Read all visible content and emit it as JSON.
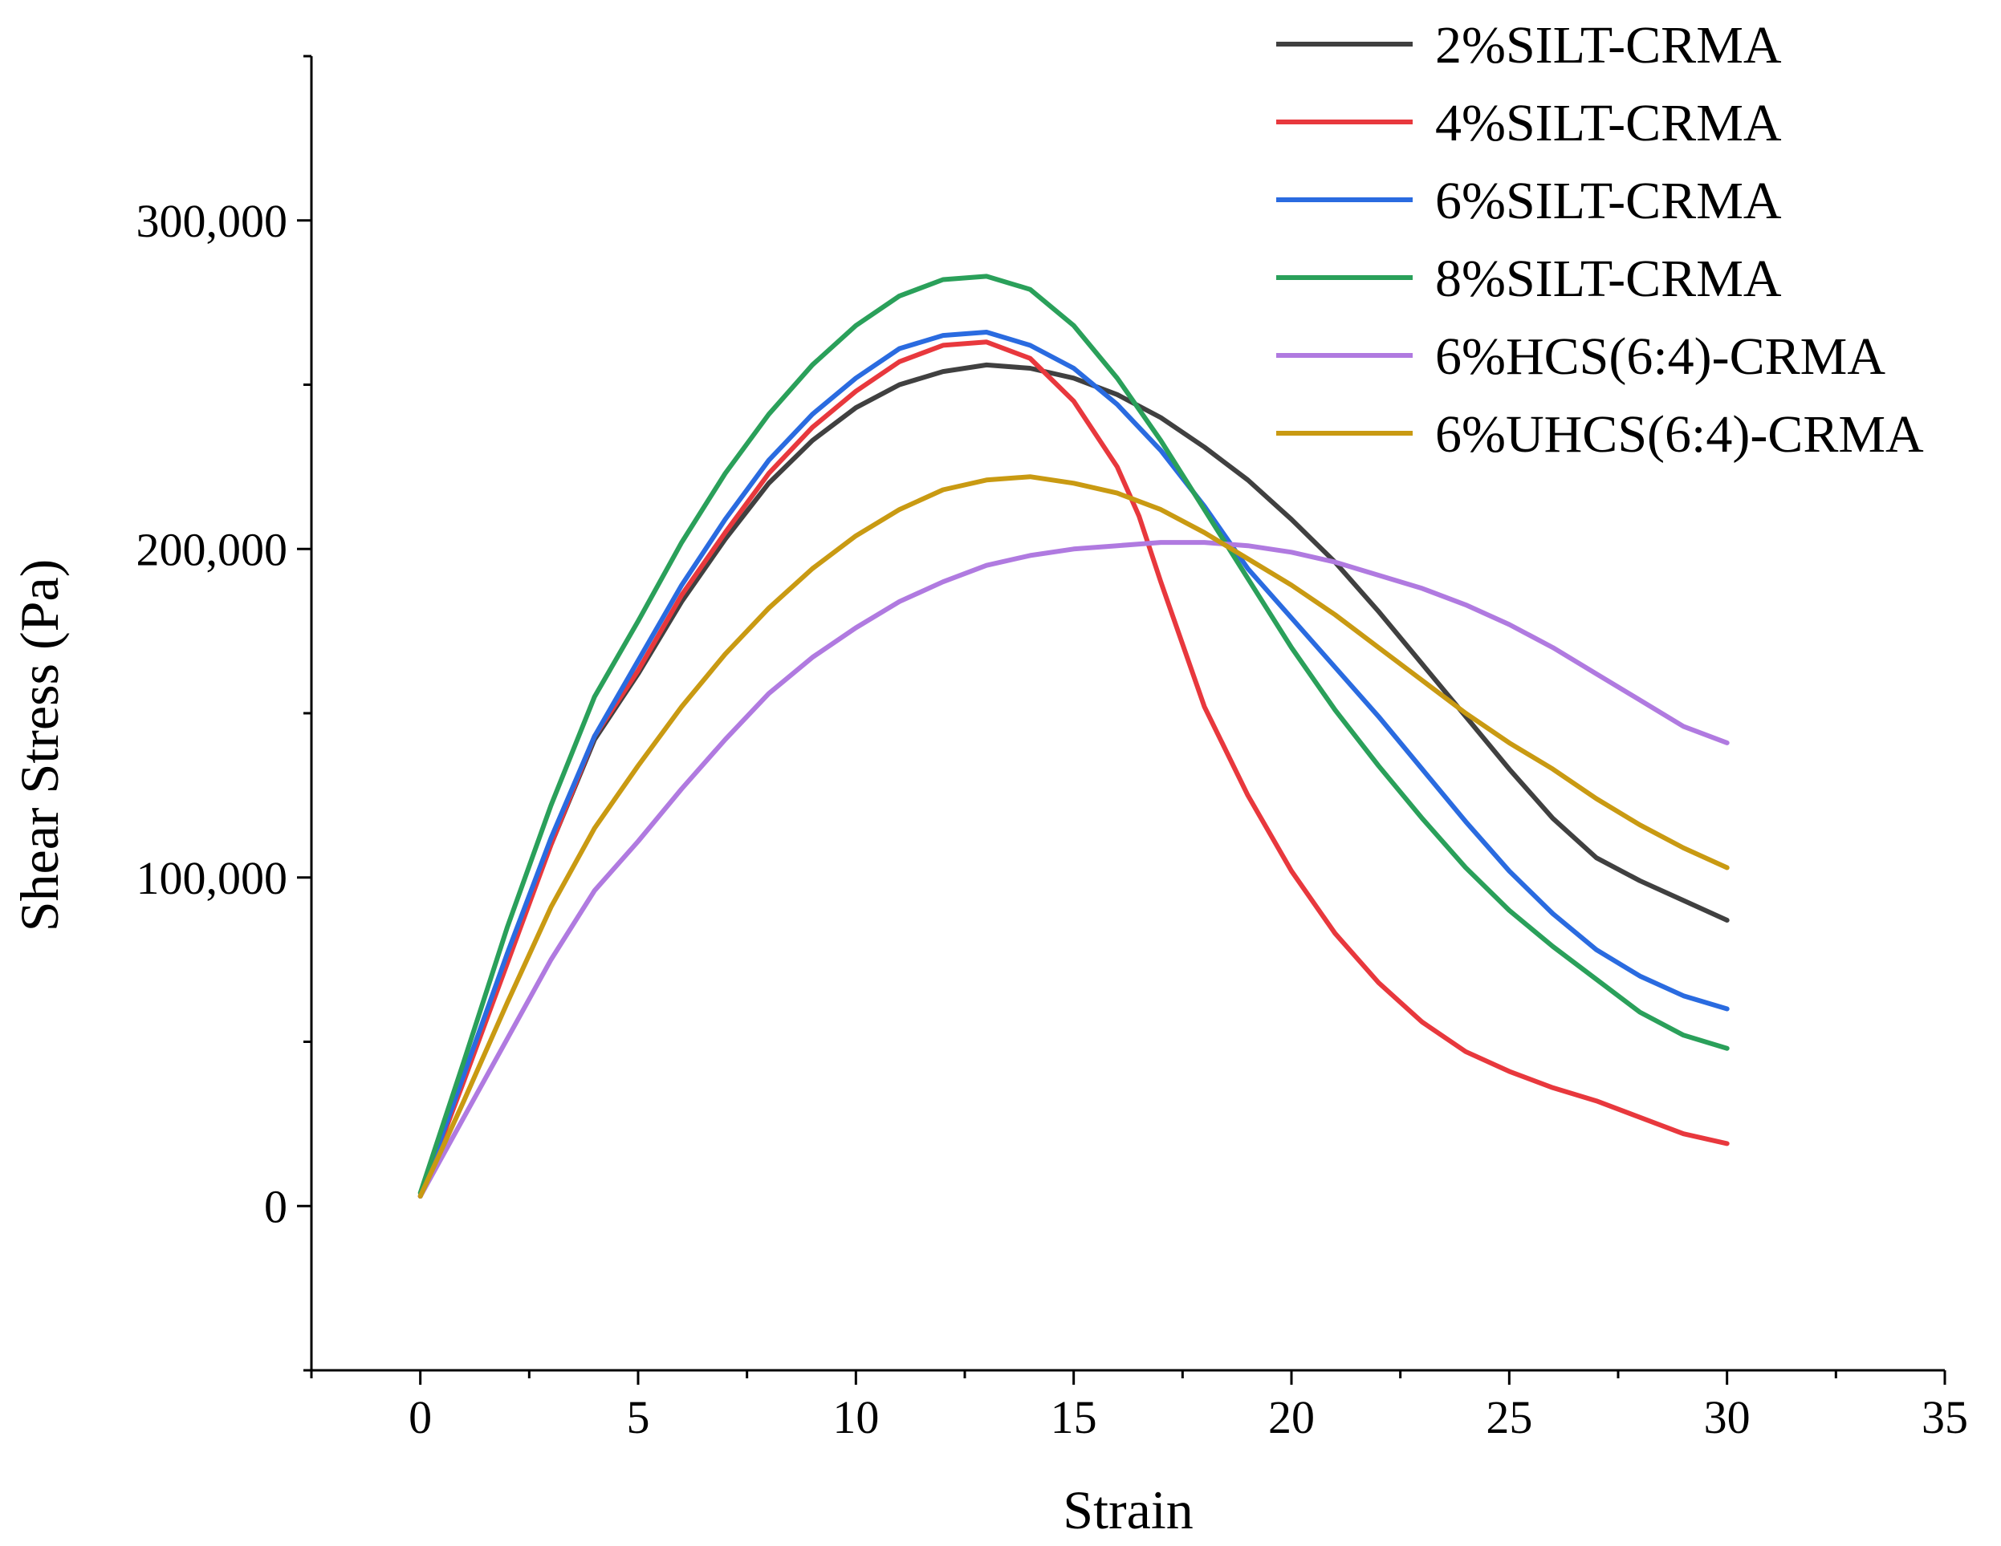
{
  "chart_data": {
    "type": "line",
    "xlabel": "Strain",
    "ylabel": "Shear Stress (Pa)",
    "xlim": [
      -2.5,
      35
    ],
    "ylim": [
      -50000,
      350000
    ],
    "xticks": [
      0,
      5,
      10,
      15,
      20,
      25,
      30,
      35
    ],
    "xtick_labels": [
      "0",
      "5",
      "10",
      "15",
      "20",
      "25",
      "30",
      "35"
    ],
    "yticks": [
      0,
      100000,
      200000,
      300000
    ],
    "ytick_labels": [
      "0",
      "100,000",
      "200,000",
      "300,000"
    ],
    "grid": false,
    "legend_position": "top-right",
    "series": [
      {
        "name": "2%SILT-CRMA",
        "color": "#404040",
        "x": [
          0,
          1,
          2,
          3,
          4,
          5,
          6,
          7,
          8,
          9,
          10,
          11,
          12,
          13,
          14,
          15,
          16,
          17,
          18,
          19,
          20,
          21,
          22,
          23,
          24,
          25,
          26,
          27,
          28,
          29,
          30
        ],
        "y": [
          3000,
          39000,
          75000,
          110000,
          142000,
          162000,
          184000,
          203000,
          220000,
          233000,
          243000,
          250000,
          254000,
          256000,
          255000,
          252000,
          247000,
          240000,
          231000,
          221000,
          209000,
          196000,
          181000,
          165000,
          149000,
          133000,
          118000,
          106000,
          99000,
          93000,
          87000
        ]
      },
      {
        "name": "4%SILT-CRMA",
        "color": "#e8383d",
        "x": [
          0,
          1,
          2,
          3,
          4,
          5,
          6,
          7,
          8,
          9,
          10,
          11,
          12,
          13,
          14,
          15,
          16,
          16.5,
          17,
          18,
          19,
          20,
          21,
          22,
          23,
          24,
          25,
          26,
          27,
          28,
          29,
          30
        ],
        "y": [
          3000,
          38000,
          74000,
          110000,
          143000,
          163000,
          186000,
          205000,
          223000,
          237000,
          248000,
          257000,
          262000,
          263000,
          258000,
          245000,
          225000,
          210000,
          190000,
          152000,
          125000,
          102000,
          83000,
          68000,
          56000,
          47000,
          41000,
          36000,
          32000,
          27000,
          22000,
          19000
        ]
      },
      {
        "name": "6%SILT-CRMA",
        "color": "#2a6be0",
        "x": [
          0,
          1,
          2,
          3,
          4,
          5,
          6,
          7,
          8,
          9,
          10,
          11,
          12,
          13,
          14,
          15,
          16,
          17,
          18,
          19,
          20,
          21,
          22,
          23,
          24,
          25,
          26,
          27,
          28,
          29,
          30
        ],
        "y": [
          3000,
          40000,
          77000,
          112000,
          143000,
          166000,
          189000,
          209000,
          227000,
          241000,
          252000,
          261000,
          265000,
          266000,
          262000,
          255000,
          244000,
          230000,
          213000,
          194000,
          179000,
          164000,
          149000,
          133000,
          117000,
          102000,
          89000,
          78000,
          70000,
          64000,
          60000
        ]
      },
      {
        "name": "8%SILT-CRMA",
        "color": "#2aa05a",
        "x": [
          0,
          1,
          2,
          3,
          4,
          5,
          6,
          7,
          8,
          9,
          10,
          11,
          12,
          13,
          14,
          15,
          16,
          17,
          18,
          19,
          20,
          21,
          22,
          23,
          24,
          25,
          26,
          27,
          28,
          29,
          30
        ],
        "y": [
          4000,
          44000,
          85000,
          122000,
          155000,
          178000,
          202000,
          223000,
          241000,
          256000,
          268000,
          277000,
          282000,
          283000,
          279000,
          268000,
          252000,
          233000,
          212000,
          191000,
          170000,
          151000,
          134000,
          118000,
          103000,
          90000,
          79000,
          69000,
          59000,
          52000,
          48000
        ]
      },
      {
        "name": "6%HCS(6:4)-CRMA",
        "color": "#b07ae0",
        "x": [
          0,
          1,
          2,
          3,
          4,
          5,
          6,
          7,
          8,
          9,
          10,
          11,
          12,
          13,
          14,
          15,
          16,
          17,
          18,
          19,
          20,
          21,
          22,
          23,
          24,
          25,
          26,
          27,
          28,
          29,
          30
        ],
        "y": [
          3000,
          27000,
          51000,
          75000,
          96000,
          111000,
          127000,
          142000,
          156000,
          167000,
          176000,
          184000,
          190000,
          195000,
          198000,
          200000,
          201000,
          202000,
          202000,
          201000,
          199000,
          196000,
          192000,
          188000,
          183000,
          177000,
          170000,
          162000,
          154000,
          146000,
          141000
        ]
      },
      {
        "name": "6%UHCS(6:4)-CRMA",
        "color": "#c99a12",
        "x": [
          0,
          1,
          2,
          3,
          4,
          5,
          6,
          7,
          8,
          9,
          10,
          11,
          12,
          13,
          14,
          15,
          16,
          17,
          18,
          19,
          20,
          21,
          22,
          23,
          24,
          25,
          26,
          27,
          28,
          29,
          30
        ],
        "y": [
          3000,
          32000,
          62000,
          91000,
          115000,
          134000,
          152000,
          168000,
          182000,
          194000,
          204000,
          212000,
          218000,
          221000,
          222000,
          220000,
          217000,
          212000,
          205000,
          197000,
          189000,
          180000,
          170000,
          160000,
          150000,
          141000,
          133000,
          124000,
          116000,
          109000,
          103000
        ]
      }
    ]
  }
}
